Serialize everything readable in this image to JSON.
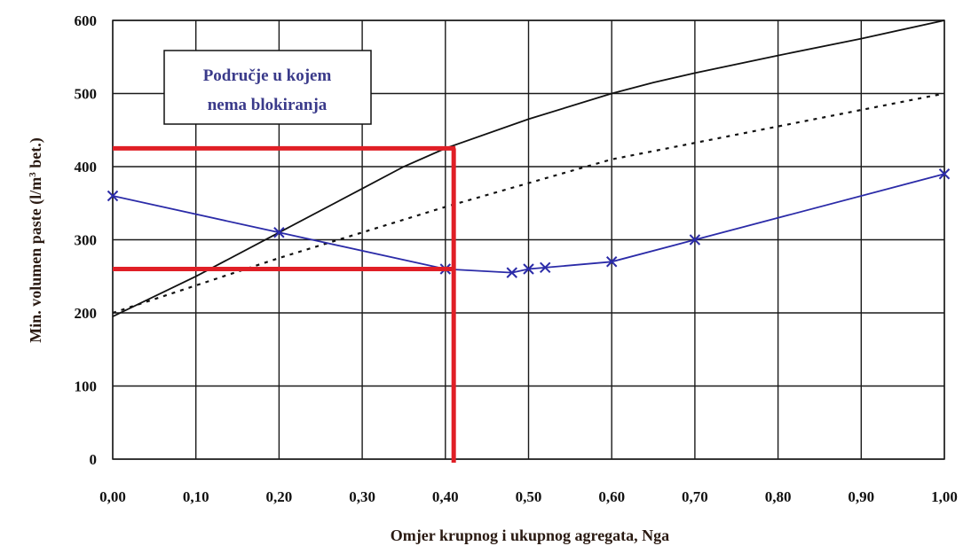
{
  "chart_data": {
    "type": "line",
    "xlabel": "Omjer krupnog i ukupnog agregata, Nga",
    "ylabel_main": "Min. volumen paste (l/m",
    "ylabel_sup": "3",
    "ylabel_tail": " bet.)",
    "xlim": [
      0,
      1
    ],
    "ylim": [
      0,
      600
    ],
    "x_ticks": [
      {
        "value": 0.0,
        "label": "0,00"
      },
      {
        "value": 0.1,
        "label": "0,10"
      },
      {
        "value": 0.2,
        "label": "0,20"
      },
      {
        "value": 0.3,
        "label": "0,30"
      },
      {
        "value": 0.4,
        "label": "0,40"
      },
      {
        "value": 0.5,
        "label": "0,50"
      },
      {
        "value": 0.6,
        "label": "0,60"
      },
      {
        "value": 0.7,
        "label": "0,70"
      },
      {
        "value": 0.8,
        "label": "0,80"
      },
      {
        "value": 0.9,
        "label": "0,90"
      },
      {
        "value": 1.0,
        "label": "1,00"
      }
    ],
    "y_ticks": [
      {
        "value": 0,
        "label": "0"
      },
      {
        "value": 100,
        "label": "100"
      },
      {
        "value": 200,
        "label": "200"
      },
      {
        "value": 300,
        "label": "300"
      },
      {
        "value": 400,
        "label": "400"
      },
      {
        "value": 500,
        "label": "500"
      },
      {
        "value": 600,
        "label": "600"
      }
    ],
    "grid": true,
    "legend": "none",
    "series": [
      {
        "style": "solid",
        "color": "#111111",
        "markers": false,
        "points": [
          [
            0.0,
            195
          ],
          [
            0.1,
            250
          ],
          [
            0.2,
            310
          ],
          [
            0.3,
            370
          ],
          [
            0.35,
            400
          ],
          [
            0.4,
            425
          ],
          [
            0.5,
            465
          ],
          [
            0.6,
            500
          ],
          [
            0.65,
            515
          ],
          [
            0.7,
            528
          ],
          [
            0.8,
            552
          ],
          [
            0.9,
            575
          ],
          [
            1.0,
            600
          ]
        ]
      },
      {
        "style": "dotted",
        "color": "#111111",
        "markers": false,
        "points": [
          [
            0.0,
            200
          ],
          [
            0.2,
            275
          ],
          [
            0.4,
            345
          ],
          [
            0.6,
            410
          ],
          [
            0.8,
            455
          ],
          [
            1.0,
            500
          ]
        ]
      },
      {
        "style": "solid",
        "color": "#2b2ba8",
        "markers": true,
        "points": [
          [
            0.0,
            360
          ],
          [
            0.2,
            310
          ],
          [
            0.4,
            260
          ],
          [
            0.48,
            255
          ],
          [
            0.5,
            260
          ],
          [
            0.52,
            262
          ],
          [
            0.6,
            270
          ],
          [
            0.7,
            300
          ],
          [
            1.0,
            390
          ]
        ]
      }
    ],
    "annotation": {
      "lines": [
        "Područje u kojem",
        "nema blokiranja"
      ]
    },
    "guides": {
      "color": "#e01f26",
      "x": 0.41,
      "y_values": [
        425,
        260
      ]
    }
  }
}
